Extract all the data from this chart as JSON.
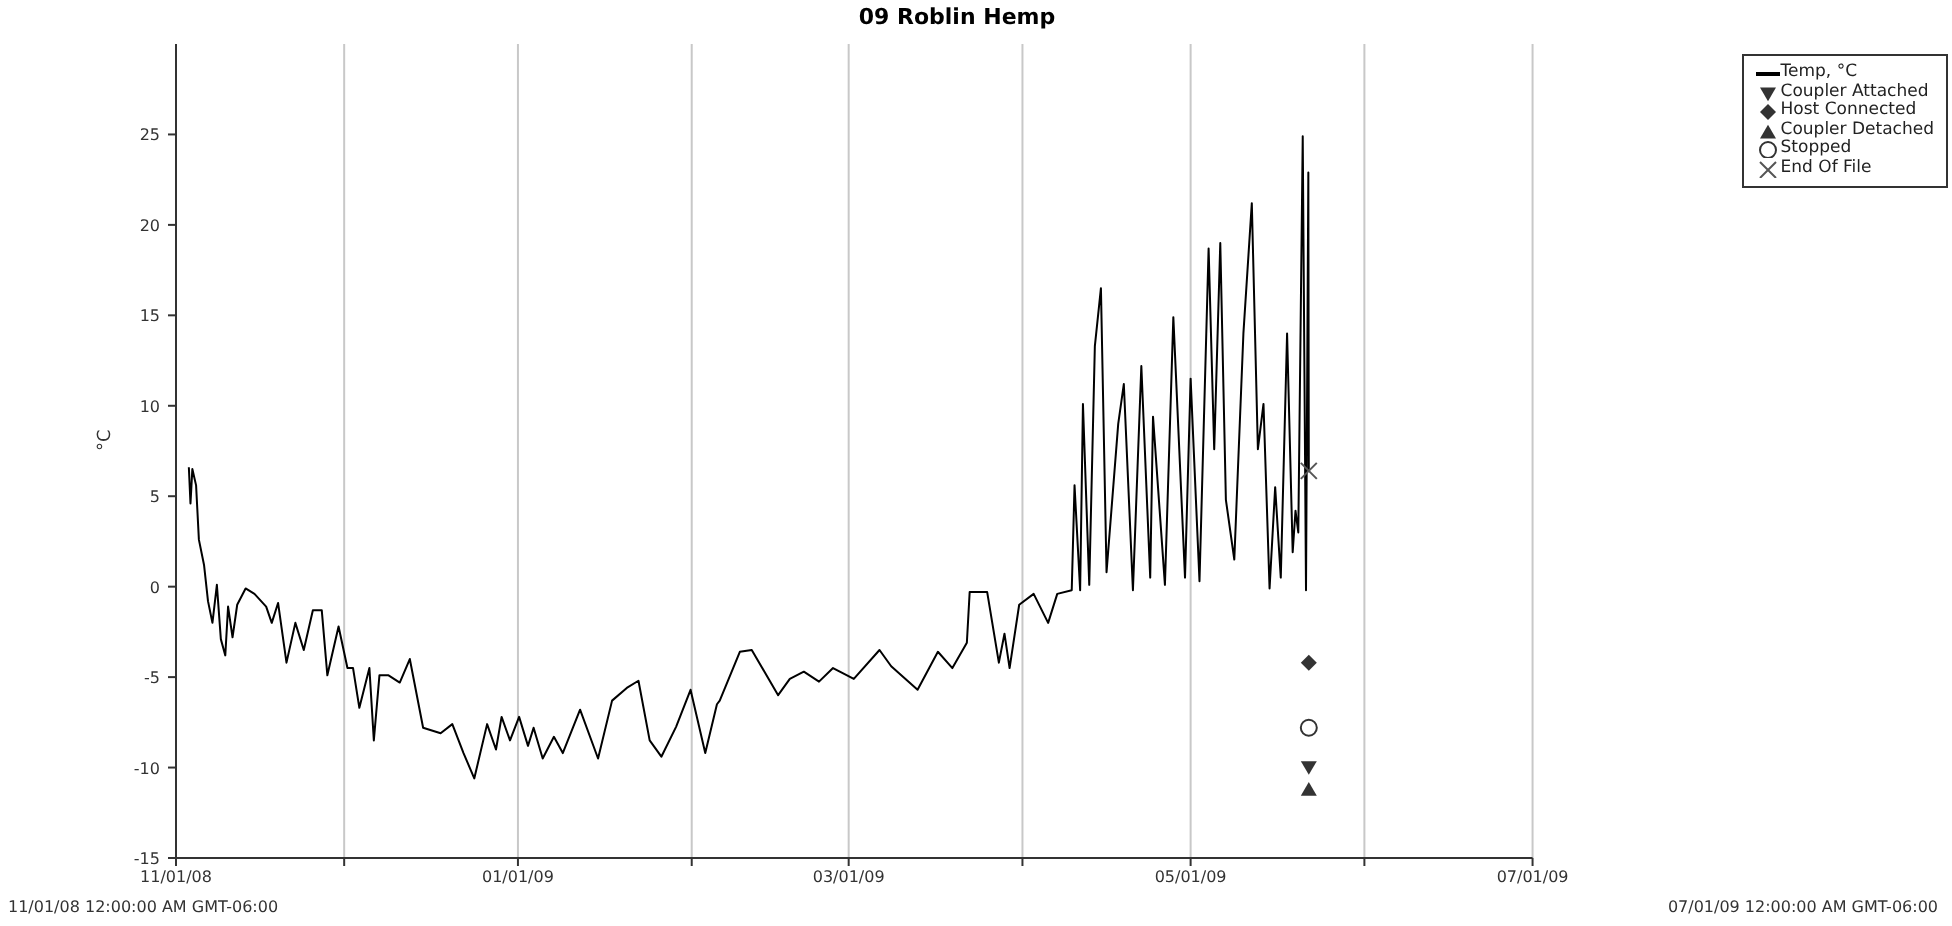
{
  "chart_data": {
    "type": "line",
    "title": "09 Roblin Hemp",
    "ylabel": "°C",
    "xlim": [
      "2008-11-01",
      "2009-07-01"
    ],
    "ylim": [
      -15,
      30
    ],
    "yticks": [
      -15,
      -10,
      -5,
      0,
      5,
      10,
      15,
      20,
      25
    ],
    "xticks": [
      {
        "value": "2008-11-01",
        "label": "11/01/08"
      },
      {
        "value": "2008-12-01",
        "label": null
      },
      {
        "value": "2009-01-01",
        "label": "01/01/09"
      },
      {
        "value": "2009-02-01",
        "label": null
      },
      {
        "value": "2009-03-01",
        "label": "03/01/09"
      },
      {
        "value": "2009-04-01",
        "label": null
      },
      {
        "value": "2009-05-01",
        "label": "05/01/09"
      },
      {
        "value": "2009-06-01",
        "label": null
      },
      {
        "value": "2009-07-01",
        "label": "07/01/09"
      }
    ],
    "grid": "x",
    "legend": "top right",
    "annotations": [
      "11/01/08 12:00:00 AM GMT-06:00",
      "07/01/09 12:00:00 AM GMT-06:00"
    ],
    "series": [
      {
        "name": "Temp, °C",
        "color": "#000000",
        "marker": "none",
        "x": [
          "2008-11-03T07:00",
          "2008-11-03T14:00",
          "2008-11-03T22:00",
          "2008-11-04T14:00",
          "2008-11-05T02:00",
          "2008-11-06T00:00",
          "2008-11-06T17:00",
          "2008-11-07T12:00",
          "2008-11-08T07:00",
          "2008-11-09T00:00",
          "2008-11-09T19:00",
          "2008-11-10T07:00",
          "2008-11-11T02:00",
          "2008-11-11T22:00",
          "2008-11-13T10:00",
          "2008-11-15T00:00",
          "2008-11-17T02:00",
          "2008-11-18T02:00",
          "2008-11-19T05:00",
          "2008-11-20T17:00",
          "2008-11-22T07:00",
          "2008-11-23T19:00",
          "2008-11-25T10:00",
          "2008-11-27T00:00",
          "2008-11-28T00:00",
          "2008-11-30T00:00",
          "2008-12-01T14:00",
          "2008-12-02T14:00",
          "2008-12-03T17:00",
          "2008-12-05T12:00",
          "2008-12-06T07:00",
          "2008-12-07T07:00",
          "2008-12-08T22:00",
          "2008-12-10T22:00",
          "2008-12-12T17:00",
          "2008-12-15T02:00",
          "2008-12-18T05:00",
          "2008-12-20T07:00",
          "2008-12-22T07:00",
          "2008-12-24T05:00",
          "2008-12-26T12:00",
          "2008-12-28T02:00",
          "2008-12-29T02:00",
          "2008-12-30T14:00",
          "2009-01-01T05:00",
          "2009-01-02T19:00",
          "2009-01-03T19:00",
          "2009-01-05T10:00",
          "2009-01-07T10:00",
          "2009-01-09T00:00",
          "2009-01-12T02:00",
          "2009-01-15T07:00",
          "2009-01-17T19:00",
          "2009-01-20T10:00",
          "2009-01-22T12:00",
          "2009-01-24T12:00",
          "2009-01-26T14:00",
          "2009-01-29T05:00",
          "2009-01-31T19:00",
          "2009-02-03T10:00",
          "2009-02-05T12:00",
          "2009-02-06T00:00",
          "2009-02-09T14:00",
          "2009-02-11T17:00",
          "2009-02-16T10:00",
          "2009-02-18T12:00",
          "2009-02-21T00:00",
          "2009-02-23T17:00",
          "2009-02-26T05:00",
          "2009-03-01T22:00",
          "2009-03-06T12:00",
          "2009-03-08T14:00",
          "2009-03-13T07:00",
          "2009-03-16T22:00",
          "2009-03-19T12:00",
          "2009-03-22T02:00",
          "2009-03-22T14:00",
          "2009-03-25T17:00",
          "2009-03-27T19:00",
          "2009-03-28T19:00",
          "2009-03-29T17:00",
          "2009-03-31T10:00",
          "2009-04-03T00:00",
          "2009-04-05T14:00",
          "2009-04-07T05:00",
          "2009-04-09T19:00",
          "2009-04-10T07:00",
          "2009-04-11T07:00",
          "2009-04-11T19:00",
          "2009-04-12T22:00",
          "2009-04-13T22:00",
          "2009-04-15T00:00",
          "2009-04-16T00:00",
          "2009-04-18T02:00",
          "2009-04-19T02:00",
          "2009-04-20T17:00",
          "2009-04-22T05:00",
          "2009-04-23T19:00",
          "2009-04-24T07:00",
          "2009-04-26T10:00",
          "2009-04-27T22:00",
          "2009-04-30T00:00",
          "2009-05-01T00:00",
          "2009-05-02T14:00",
          "2009-05-04T05:00",
          "2009-05-05T05:00",
          "2009-05-06T07:00",
          "2009-05-07T07:00",
          "2009-05-08T19:00",
          "2009-05-10T10:00",
          "2009-05-11T22:00",
          "2009-05-13T00:00",
          "2009-05-14T00:00",
          "2009-05-15T02:00",
          "2009-05-16T02:00",
          "2009-05-17T02:00",
          "2009-05-18T05:00",
          "2009-05-19T05:00",
          "2009-05-19T17:00",
          "2009-05-20T05:00",
          "2009-05-21T00:00",
          "2009-05-21T14:00",
          "2009-05-22T00:00",
          "2009-05-22T02:00"
        ],
        "values": [
          6.6,
          4.6,
          6.5,
          5.6,
          2.6,
          1.2,
          -0.8,
          -2.0,
          0.1,
          -2.9,
          -3.8,
          -1.1,
          -2.8,
          -1.0,
          -0.1,
          -0.4,
          -1.1,
          -2.0,
          -0.9,
          -4.2,
          -2.0,
          -3.5,
          -1.3,
          -1.3,
          -4.9,
          -2.2,
          -4.5,
          -4.5,
          -6.7,
          -4.5,
          -8.5,
          -4.9,
          -4.9,
          -5.3,
          -4.0,
          -7.8,
          -8.1,
          -7.6,
          -9.2,
          -10.6,
          -7.6,
          -9.0,
          -7.2,
          -8.5,
          -7.2,
          -8.8,
          -7.8,
          -9.5,
          -8.3,
          -9.2,
          -6.8,
          -9.5,
          -6.3,
          -5.6,
          -5.2,
          -8.5,
          -9.4,
          -7.75,
          -5.7,
          -9.2,
          -6.5,
          -6.3,
          -3.6,
          -3.5,
          -6.0,
          -5.1,
          -4.7,
          -5.25,
          -4.5,
          -5.1,
          -3.5,
          -4.4,
          -5.7,
          -3.6,
          -4.5,
          -3.1,
          -0.3,
          -0.3,
          -4.2,
          -2.6,
          -4.5,
          -1.0,
          -0.4,
          -2.0,
          -0.4,
          -0.2,
          5.6,
          -0.2,
          10.1,
          0.1,
          13.3,
          16.5,
          0.8,
          9.0,
          11.2,
          -0.2,
          12.2,
          0.5,
          9.4,
          0.1,
          14.9,
          0.5,
          11.5,
          0.3,
          18.7,
          7.6,
          19.0,
          4.8,
          1.5,
          14.0,
          21.2,
          7.6,
          10.1,
          -0.1,
          5.5,
          0.5,
          14.0,
          1.9,
          4.2,
          3.0,
          24.9,
          -0.2,
          22.9,
          6.4
        ]
      },
      {
        "name": "Coupler Attached",
        "type": "scatter",
        "color": "#333333",
        "marker": "triangle-down",
        "x": [
          "2009-05-22T02:00"
        ],
        "values": [
          -10.0
        ]
      },
      {
        "name": "Host Connected",
        "type": "scatter",
        "color": "#333333",
        "marker": "diamond",
        "x": [
          "2009-05-22T02:00"
        ],
        "values": [
          -4.2
        ]
      },
      {
        "name": "Coupler Detached",
        "type": "scatter",
        "color": "#333333",
        "marker": "triangle",
        "x": [
          "2009-05-22T02:00"
        ],
        "values": [
          -11.2
        ]
      },
      {
        "name": "Stopped",
        "type": "scatter",
        "color": "#333333",
        "marker": "circle",
        "x": [
          "2009-05-22T02:00"
        ],
        "values": [
          -7.8
        ]
      },
      {
        "name": "End Of File",
        "type": "scatter",
        "color": "#555555",
        "marker": "cross",
        "x": [
          "2009-05-22T02:00"
        ],
        "values": [
          6.4
        ]
      }
    ]
  }
}
